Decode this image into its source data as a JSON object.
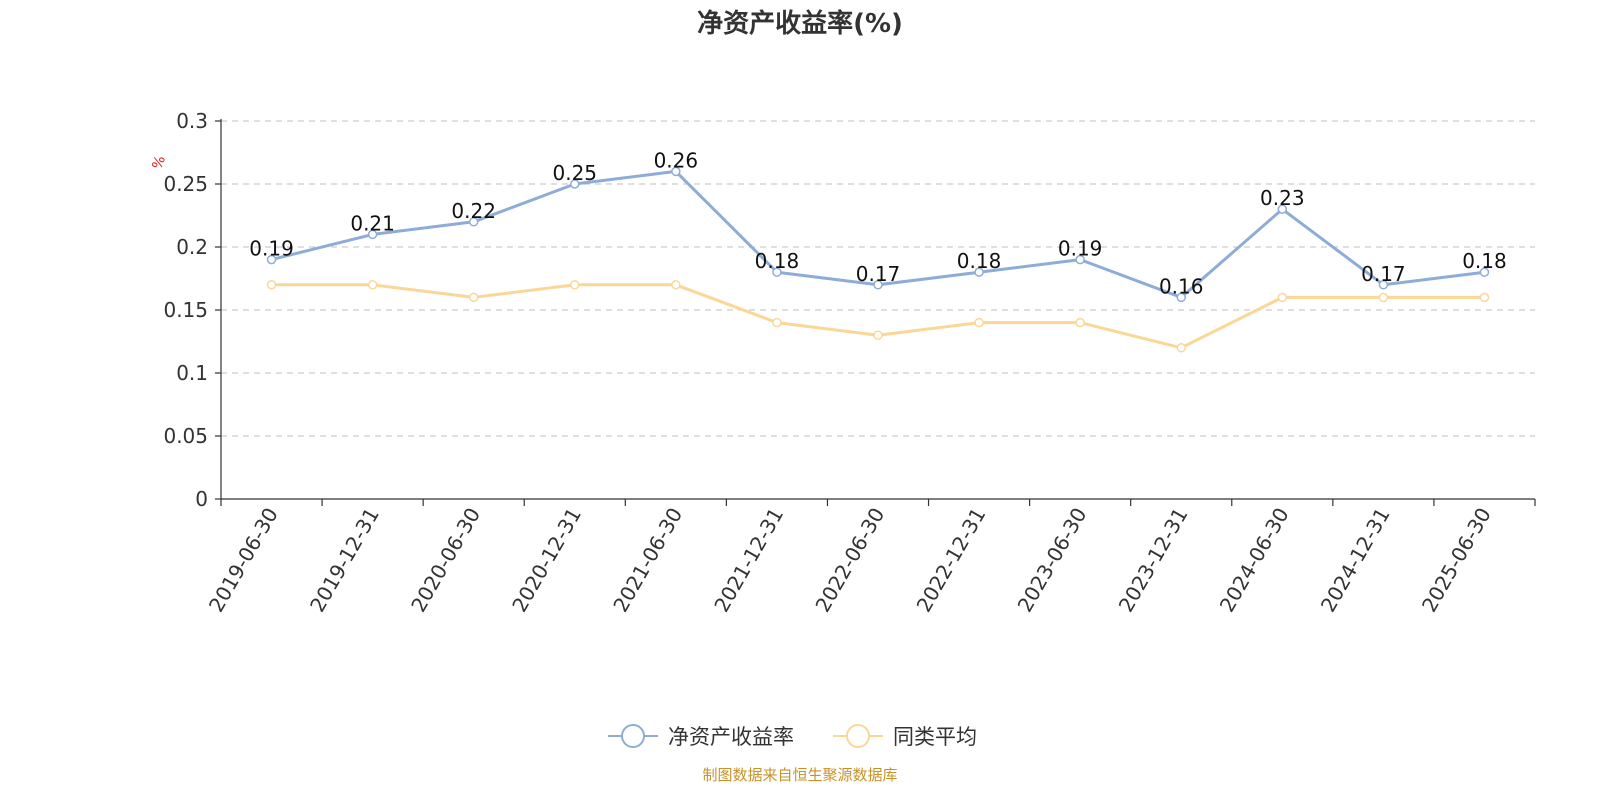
{
  "chart_data": {
    "type": "line",
    "title": "净资产收益率(%)",
    "ylabel": "%",
    "xlabel": "",
    "ylim": [
      0,
      0.3
    ],
    "yticks": [
      "0",
      "0.05",
      "0.1",
      "0.15",
      "0.2",
      "0.25",
      "0.3"
    ],
    "categories": [
      "2019-06-30",
      "2019-12-31",
      "2020-06-30",
      "2020-12-31",
      "2021-06-30",
      "2021-12-31",
      "2022-06-30",
      "2022-12-31",
      "2023-06-30",
      "2023-12-31",
      "2024-06-30",
      "2024-12-31",
      "2025-06-30"
    ],
    "series": [
      {
        "name": "净资产收益率",
        "color": "#8eacd8",
        "values": [
          0.19,
          0.21,
          0.22,
          0.25,
          0.26,
          0.18,
          0.17,
          0.18,
          0.19,
          0.16,
          0.23,
          0.17,
          0.18
        ],
        "labels": [
          "0.19",
          "0.21",
          "0.22",
          "0.25",
          "0.26",
          "0.18",
          "0.17",
          "0.18",
          "0.19",
          "0.16",
          "0.23",
          "0.17",
          "0.18"
        ]
      },
      {
        "name": "同类平均",
        "color": "#fad796",
        "values": [
          0.17,
          0.17,
          0.16,
          0.17,
          0.17,
          0.14,
          0.13,
          0.14,
          0.14,
          0.12,
          0.16,
          0.16,
          0.16
        ]
      }
    ],
    "grid": true,
    "legend_position": "bottom-center"
  },
  "footer": {
    "source": "制图数据来自恒生聚源数据库"
  }
}
